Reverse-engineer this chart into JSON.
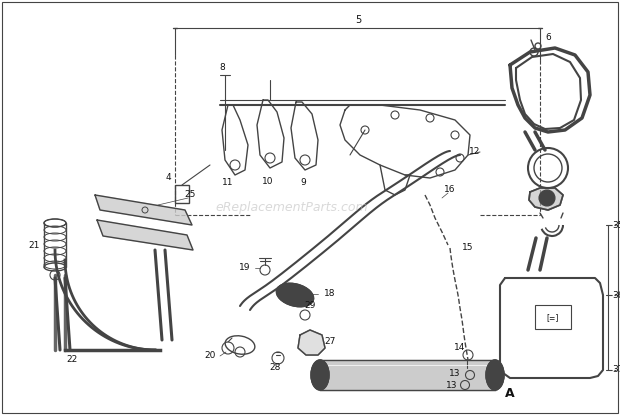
{
  "bg_color": "#ffffff",
  "line_color": "#444444",
  "watermark": "eReplacementParts.com",
  "watermark_color": "#bbbbbb",
  "label_fontsize": 6.5,
  "figsize": [
    6.2,
    4.15
  ],
  "dpi": 100
}
